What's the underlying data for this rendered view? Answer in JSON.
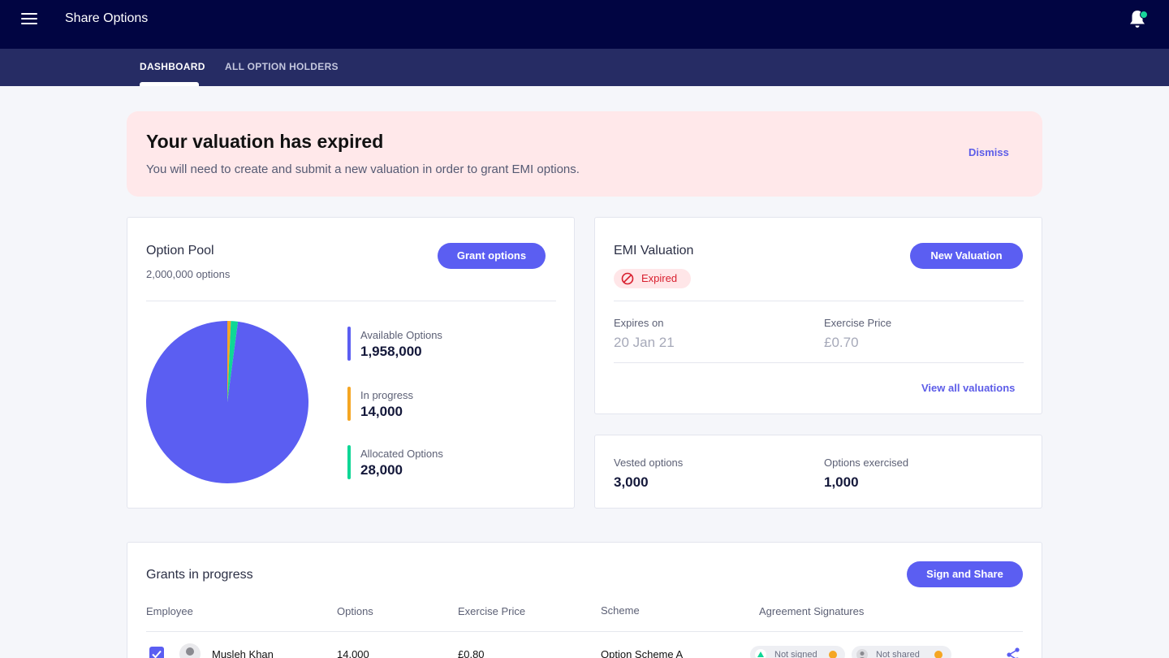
{
  "app": {
    "title": "Share Options"
  },
  "icons": {
    "menu": "menu-icon",
    "bell": "bell-icon",
    "expired": "no-entry-icon",
    "share": "share-icon",
    "warning": "warning-dot-icon"
  },
  "colors": {
    "header": "#010542",
    "tabbar": "#262c64",
    "accent": "#5b5ef2",
    "available": "#5b5ef2",
    "in_progress": "#f5a623",
    "allocated": "#0fd796",
    "alert_bg": "#ffe8ea",
    "expired": "#d81f2e"
  },
  "tabs": [
    {
      "label": "DASHBOARD",
      "active": true
    },
    {
      "label": "ALL OPTION HOLDERS",
      "active": false
    }
  ],
  "alert": {
    "title": "Your valuation has expired",
    "text": "You will need to create and submit a new valuation in order to grant EMI options.",
    "dismiss": "Dismiss"
  },
  "option_pool": {
    "title": "Option Pool",
    "total": "2,000,000 options",
    "button": "Grant options",
    "legend": [
      {
        "label": "Available Options",
        "value": "1,958,000"
      },
      {
        "label": "In progress",
        "value": "14,000"
      },
      {
        "label": "Allocated Options",
        "value": "28,000"
      }
    ]
  },
  "chart_data": {
    "type": "pie",
    "categories": [
      "Available Options",
      "In progress",
      "Allocated Options"
    ],
    "values": [
      1958000,
      14000,
      28000
    ],
    "colors": [
      "#5b5ef2",
      "#f5a623",
      "#0fd796"
    ],
    "title": "",
    "legend": "right"
  },
  "emi": {
    "title": "EMI Valuation",
    "button": "New Valuation",
    "status": "Expired",
    "expires_label": "Expires on",
    "expires_value": "20 Jan 21",
    "price_label": "Exercise Price",
    "price_value": "£0.70",
    "view_all": "View all valuations"
  },
  "stats": {
    "vested_label": "Vested options",
    "vested_value": "3,000",
    "exercised_label": "Options exercised",
    "exercised_value": "1,000"
  },
  "grants": {
    "title": "Grants in progress",
    "button": "Sign and Share",
    "columns": [
      "Employee",
      "Options",
      "Exercise Price",
      "Scheme",
      "Agreement Signatures"
    ],
    "rows": [
      {
        "employee": "Musleh Khan",
        "options": "14,000",
        "price": "£0.80",
        "scheme": "Option Scheme A",
        "sig1": "Not signed",
        "sig2": "Not shared",
        "checked": true
      }
    ]
  }
}
